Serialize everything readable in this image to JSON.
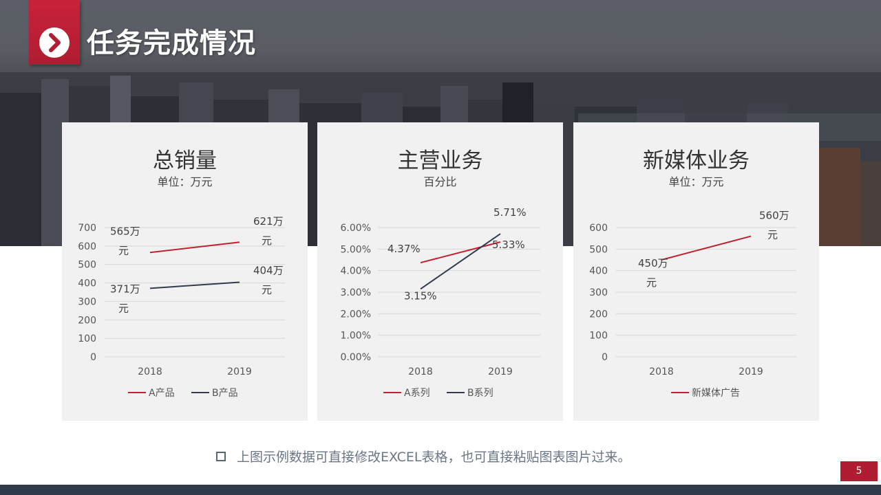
{
  "slide": {
    "title": "任务完成情况",
    "note": "上图示例数据可直接修改EXCEL表格，也可直接粘贴图表图片过来。",
    "page_number": "5"
  },
  "colors": {
    "accent": "#c8223a",
    "series_a": "#c0202f",
    "series_b": "#303a4c",
    "panel_bg": "#f1f1f1",
    "footer": "#2f3a4b"
  },
  "chart_data": [
    {
      "type": "line",
      "title": "总销量",
      "subtitle": "单位：万元",
      "categories": [
        "2018",
        "2019"
      ],
      "ylim": [
        0,
        700
      ],
      "yticks": [
        "700",
        "600",
        "500",
        "400",
        "300",
        "200",
        "100",
        "0"
      ],
      "grid": true,
      "legend": "bottom",
      "series": [
        {
          "name": "A产品",
          "values": [
            565,
            621
          ],
          "labels": [
            [
              "565万",
              "元"
            ],
            [
              "621万",
              "元"
            ]
          ]
        },
        {
          "name": "B产品",
          "values": [
            371,
            404
          ],
          "labels": [
            [
              "371万",
              "元"
            ],
            [
              "404万",
              "元"
            ]
          ]
        }
      ]
    },
    {
      "type": "line",
      "title": "主营业务",
      "subtitle": "百分比",
      "categories": [
        "2018",
        "2019"
      ],
      "ylim": [
        0,
        6
      ],
      "yticks": [
        "6.00%",
        "5.00%",
        "4.00%",
        "3.00%",
        "2.00%",
        "1.00%",
        "0.00%"
      ],
      "grid": true,
      "legend": "bottom",
      "series": [
        {
          "name": "A系列",
          "values": [
            4.37,
            5.33
          ],
          "labels": [
            [
              "4.37%"
            ],
            [
              "5.33%"
            ]
          ]
        },
        {
          "name": "B系列",
          "values": [
            3.15,
            5.71
          ],
          "labels": [
            [
              "3.15%"
            ],
            [
              "5.71%"
            ]
          ]
        }
      ]
    },
    {
      "type": "line",
      "title": "新媒体业务",
      "subtitle": "单位：万元",
      "categories": [
        "2018",
        "2019"
      ],
      "ylim": [
        0,
        600
      ],
      "yticks": [
        "600",
        "500",
        "400",
        "300",
        "200",
        "100",
        "0"
      ],
      "grid": true,
      "legend": "bottom",
      "series": [
        {
          "name": "新媒体广告",
          "values": [
            450,
            560
          ],
          "labels": [
            [
              "450万",
              "元"
            ],
            [
              "560万",
              "元"
            ]
          ]
        }
      ]
    }
  ]
}
